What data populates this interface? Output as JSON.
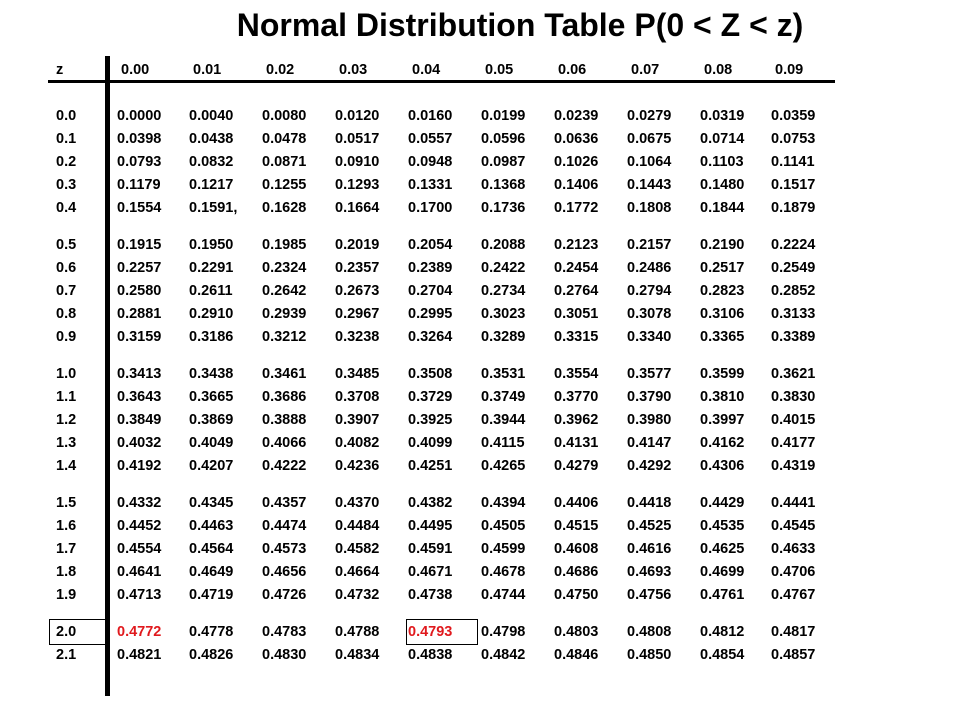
{
  "title": "Normal Distribution Table P(0 < Z < z)",
  "header": [
    "z",
    "0.00",
    "0.01",
    "0.02",
    "0.03",
    "0.04",
    "0.05",
    "0.06",
    "0.07",
    "0.08",
    "0.09"
  ],
  "rows": [
    {
      "z": "0.0",
      "vals": [
        "0.0000",
        "0.0040",
        "0.0080",
        "0.0120",
        "0.0160",
        "0.0199",
        "0.0239",
        "0.0279",
        "0.0319",
        "0.0359"
      ]
    },
    {
      "z": "0.1",
      "vals": [
        "0.0398",
        "0.0438",
        "0.0478",
        "0.0517",
        "0.0557",
        "0.0596",
        "0.0636",
        "0.0675",
        "0.0714",
        "0.0753"
      ]
    },
    {
      "z": "0.2",
      "vals": [
        "0.0793",
        "0.0832",
        "0.0871",
        "0.0910",
        "0.0948",
        "0.0987",
        "0.1026",
        "0.1064",
        "0.1103",
        "0.1141"
      ]
    },
    {
      "z": "0.3",
      "vals": [
        "0.1179",
        "0.1217",
        "0.1255",
        "0.1293",
        "0.1331",
        "0.1368",
        "0.1406",
        "0.1443",
        "0.1480",
        "0.1517"
      ]
    },
    {
      "z": "0.4",
      "vals": [
        "0.1554",
        "0.1591,",
        "0.1628",
        "0.1664",
        "0.1700",
        "0.1736",
        "0.1772",
        "0.1808",
        "0.1844",
        "0.1879"
      ]
    },
    {
      "z": "0.5",
      "vals": [
        "0.1915",
        "0.1950",
        "0.1985",
        "0.2019",
        "0.2054",
        "0.2088",
        "0.2123",
        "0.2157",
        "0.2190",
        "0.2224"
      ]
    },
    {
      "z": "0.6",
      "vals": [
        "0.2257",
        "0.2291",
        "0.2324",
        "0.2357",
        "0.2389",
        "0.2422",
        "0.2454",
        "0.2486",
        "0.2517",
        "0.2549"
      ]
    },
    {
      "z": "0.7",
      "vals": [
        "0.2580",
        "0.2611",
        "0.2642",
        "0.2673",
        "0.2704",
        "0.2734",
        "0.2764",
        "0.2794",
        "0.2823",
        "0.2852"
      ]
    },
    {
      "z": "0.8",
      "vals": [
        "0.2881",
        "0.2910",
        "0.2939",
        "0.2967",
        "0.2995",
        "0.3023",
        "0.3051",
        "0.3078",
        "0.3106",
        "0.3133"
      ]
    },
    {
      "z": "0.9",
      "vals": [
        "0.3159",
        "0.3186",
        "0.3212",
        "0.3238",
        "0.3264",
        "0.3289",
        "0.3315",
        "0.3340",
        "0.3365",
        "0.3389"
      ]
    },
    {
      "z": "1.0",
      "vals": [
        "0.3413",
        "0.3438",
        "0.3461",
        "0.3485",
        "0.3508",
        "0.3531",
        "0.3554",
        "0.3577",
        "0.3599",
        "0.3621"
      ]
    },
    {
      "z": "1.1",
      "vals": [
        "0.3643",
        "0.3665",
        "0.3686",
        "0.3708",
        "0.3729",
        "0.3749",
        "0.3770",
        "0.3790",
        "0.3810",
        "0.3830"
      ]
    },
    {
      "z": "1.2",
      "vals": [
        "0.3849",
        "0.3869",
        "0.3888",
        "0.3907",
        "0.3925",
        "0.3944",
        "0.3962",
        "0.3980",
        "0.3997",
        "0.4015"
      ]
    },
    {
      "z": "1.3",
      "vals": [
        "0.4032",
        "0.4049",
        "0.4066",
        "0.4082",
        "0.4099",
        "0.4115",
        "0.4131",
        "0.4147",
        "0.4162",
        "0.4177"
      ]
    },
    {
      "z": "1.4",
      "vals": [
        "0.4192",
        "0.4207",
        "0.4222",
        "0.4236",
        "0.4251",
        "0.4265",
        "0.4279",
        "0.4292",
        "0.4306",
        "0.4319"
      ]
    },
    {
      "z": "1.5",
      "vals": [
        "0.4332",
        "0.4345",
        "0.4357",
        "0.4370",
        "0.4382",
        "0.4394",
        "0.4406",
        "0.4418",
        "0.4429",
        "0.4441"
      ]
    },
    {
      "z": "1.6",
      "vals": [
        "0.4452",
        "0.4463",
        "0.4474",
        "0.4484",
        "0.4495",
        "0.4505",
        "0.4515",
        "0.4525",
        "0.4535",
        "0.4545"
      ]
    },
    {
      "z": "1.7",
      "vals": [
        "0.4554",
        "0.4564",
        "0.4573",
        "0.4582",
        "0.4591",
        "0.4599",
        "0.4608",
        "0.4616",
        "0.4625",
        "0.4633"
      ]
    },
    {
      "z": "1.8",
      "vals": [
        "0.4641",
        "0.4649",
        "0.4656",
        "0.4664",
        "0.4671",
        "0.4678",
        "0.4686",
        "0.4693",
        "0.4699",
        "0.4706"
      ]
    },
    {
      "z": "1.9",
      "vals": [
        "0.4713",
        "0.4719",
        "0.4726",
        "0.4732",
        "0.4738",
        "0.4744",
        "0.4750",
        "0.4756",
        "0.4761",
        "0.4767"
      ]
    },
    {
      "z": "2.0",
      "vals": [
        "0.4772",
        "0.4778",
        "0.4783",
        "0.4788",
        "0.4793",
        "0.4798",
        "0.4803",
        "0.4808",
        "0.4812",
        "0.4817"
      ]
    },
    {
      "z": "2.1",
      "vals": [
        "0.4821",
        "0.4826",
        "0.4830",
        "0.4834",
        "0.4838",
        "0.4842",
        "0.4846",
        "0.4850",
        "0.4854",
        "0.4857"
      ]
    }
  ],
  "highlight_color": "#e0191d",
  "highlighted_cells": [
    {
      "row": "2.0",
      "col": "0.00",
      "value": "0.4772"
    },
    {
      "row": "2.0",
      "col": "0.04",
      "value": "0.4793"
    }
  ],
  "boxed_cells": [
    {
      "row": "2.0",
      "col": "z"
    },
    {
      "row": "2.0",
      "col": "0.04"
    }
  ]
}
